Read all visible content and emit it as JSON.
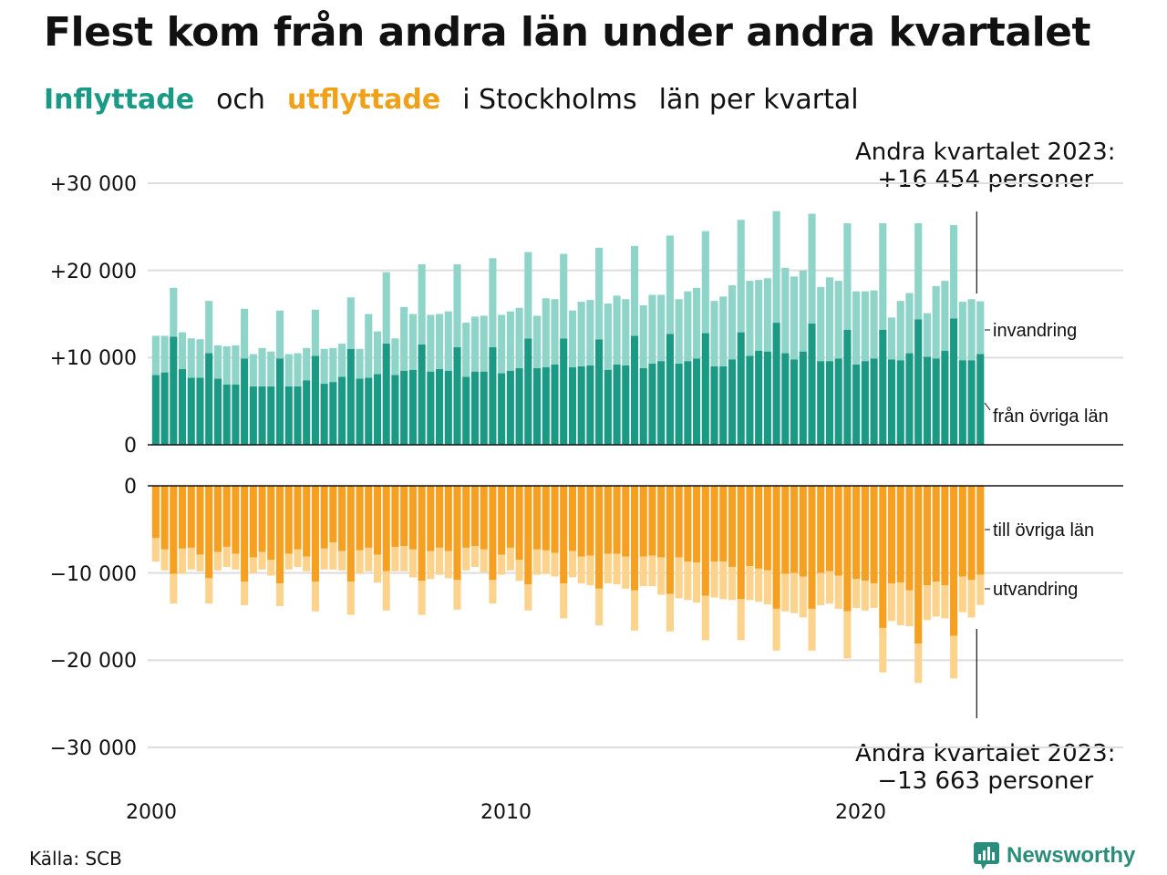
{
  "title": "Flest kom från andra län under andra kvartalet",
  "subtitle": {
    "in_word": "Inflyttade",
    "and_word": "och",
    "out_word": "utflyttade",
    "rest_1": "i Stockholms",
    "rest_2": "län per kvartal"
  },
  "annotation_top": {
    "line1": "Andra kvartalet 2023:",
    "line2": "+16 454 personer"
  },
  "annotation_bottom": {
    "line1": "Andra kvartalet 2023:",
    "line2": "−13 663 personer"
  },
  "source": "Källa: SCB",
  "logo": {
    "text": "Newsworthy",
    "icon": "newsworthy-logo-icon"
  },
  "colors": {
    "in_dark": "#1a9985",
    "in_light": "#8fd4c9",
    "out_dark": "#f5a020",
    "out_light": "#fbd38d",
    "grid": "#dddddd"
  },
  "chart_data": {
    "type": "bar",
    "stacked": true,
    "x_ticks": [
      "2000",
      "2010",
      "2020"
    ],
    "y_ticks_top": [
      "+30 000",
      "+20 000",
      "+10 000",
      "0"
    ],
    "y_ticks_bottom": [
      "0",
      "−10 000",
      "−20 000",
      "−30 000"
    ],
    "ylim_top": [
      0,
      30000
    ],
    "ylim_bottom": [
      -30000,
      0
    ],
    "series_labels": {
      "in_domestic": "från övriga län",
      "in_foreign": "invandring",
      "out_domestic": "till övriga län",
      "out_foreign": "utvandring"
    },
    "quarters": [
      "2000Q1",
      "2000Q2",
      "2000Q3",
      "2000Q4",
      "2001Q1",
      "2001Q2",
      "2001Q3",
      "2001Q4",
      "2002Q1",
      "2002Q2",
      "2002Q3",
      "2002Q4",
      "2003Q1",
      "2003Q2",
      "2003Q3",
      "2003Q4",
      "2004Q1",
      "2004Q2",
      "2004Q3",
      "2004Q4",
      "2005Q1",
      "2005Q2",
      "2005Q3",
      "2005Q4",
      "2006Q1",
      "2006Q2",
      "2006Q3",
      "2006Q4",
      "2007Q1",
      "2007Q2",
      "2007Q3",
      "2007Q4",
      "2008Q1",
      "2008Q2",
      "2008Q3",
      "2008Q4",
      "2009Q1",
      "2009Q2",
      "2009Q3",
      "2009Q4",
      "2010Q1",
      "2010Q2",
      "2010Q3",
      "2010Q4",
      "2011Q1",
      "2011Q2",
      "2011Q3",
      "2011Q4",
      "2012Q1",
      "2012Q2",
      "2012Q3",
      "2012Q4",
      "2013Q1",
      "2013Q2",
      "2013Q3",
      "2013Q4",
      "2014Q1",
      "2014Q2",
      "2014Q3",
      "2014Q4",
      "2015Q1",
      "2015Q2",
      "2015Q3",
      "2015Q4",
      "2016Q1",
      "2016Q2",
      "2016Q3",
      "2016Q4",
      "2017Q1",
      "2017Q2",
      "2017Q3",
      "2017Q4",
      "2018Q1",
      "2018Q2",
      "2018Q3",
      "2018Q4",
      "2019Q1",
      "2019Q2",
      "2019Q3",
      "2019Q4",
      "2020Q1",
      "2020Q2",
      "2020Q3",
      "2020Q4",
      "2021Q1",
      "2021Q2",
      "2021Q3",
      "2021Q4",
      "2022Q1",
      "2022Q2",
      "2022Q3",
      "2022Q4",
      "2023Q1",
      "2023Q2"
    ],
    "in_domestic": [
      8000,
      8300,
      12400,
      8700,
      7700,
      7700,
      10500,
      7600,
      6900,
      6900,
      9900,
      6700,
      6700,
      6700,
      9900,
      6700,
      6700,
      7400,
      10200,
      7000,
      7200,
      7800,
      11000,
      7600,
      7700,
      8100,
      11600,
      8000,
      8500,
      8600,
      11500,
      8400,
      8700,
      8500,
      11200,
      7800,
      8400,
      8400,
      11200,
      8200,
      8500,
      8800,
      12200,
      8800,
      8900,
      9200,
      12200,
      8900,
      9000,
      9100,
      12100,
      8600,
      9200,
      9100,
      12500,
      8800,
      9300,
      9600,
      12700,
      9300,
      9600,
      9900,
      12800,
      9000,
      9000,
      9800,
      12900,
      10200,
      10800,
      10700,
      14000,
      10500,
      9800,
      10700,
      13900,
      9600,
      9600,
      9900,
      13200,
      9200,
      9600,
      9900,
      13200,
      9800,
      9700,
      10500,
      14400,
      10100,
      9900,
      10800,
      14500,
      9700,
      9700,
      10400
    ],
    "in_foreign": [
      4500,
      4200,
      5600,
      4200,
      4500,
      4400,
      6000,
      3800,
      4400,
      4500,
      5700,
      3700,
      4400,
      4000,
      5500,
      3700,
      3800,
      3700,
      5300,
      4000,
      3900,
      3800,
      5900,
      3400,
      7300,
      4900,
      8200,
      4200,
      7300,
      6400,
      9200,
      6500,
      6300,
      6800,
      9500,
      6200,
      6300,
      6400,
      10200,
      6700,
      6800,
      6900,
      9900,
      6000,
      7900,
      7500,
      9700,
      6500,
      7400,
      7500,
      10500,
      7600,
      7900,
      7600,
      10300,
      7200,
      7900,
      7600,
      11300,
      7400,
      8000,
      8100,
      11700,
      7500,
      8000,
      8500,
      12900,
      8600,
      8100,
      8400,
      12800,
      9800,
      9500,
      9300,
      12600,
      8500,
      9600,
      8900,
      12200,
      8400,
      8000,
      7800,
      12200,
      4800,
      6800,
      6900,
      11000,
      5000,
      8300,
      8000,
      10700,
      6700,
      7000,
      6054
    ],
    "out_domestic": [
      -6000,
      -7300,
      -10100,
      -7200,
      -7100,
      -7900,
      -10600,
      -7600,
      -7000,
      -7800,
      -11000,
      -8200,
      -7600,
      -8500,
      -11200,
      -7800,
      -7300,
      -8100,
      -11000,
      -7200,
      -6500,
      -7500,
      -11000,
      -7400,
      -7100,
      -7900,
      -9800,
      -7000,
      -6900,
      -7300,
      -10900,
      -7500,
      -7100,
      -7500,
      -10800,
      -7100,
      -6900,
      -7300,
      -10800,
      -7900,
      -7100,
      -8500,
      -11300,
      -7300,
      -7400,
      -7700,
      -11200,
      -7500,
      -8100,
      -8000,
      -11800,
      -7800,
      -7800,
      -8100,
      -12000,
      -8100,
      -8000,
      -8200,
      -12400,
      -8200,
      -8700,
      -8800,
      -12600,
      -8700,
      -8700,
      -9300,
      -13000,
      -9200,
      -9500,
      -9700,
      -14100,
      -10100,
      -10000,
      -10400,
      -14100,
      -10000,
      -9800,
      -10300,
      -14400,
      -10700,
      -10900,
      -11200,
      -16300,
      -11200,
      -11100,
      -12000,
      -18100,
      -11400,
      -11000,
      -11400,
      -17200,
      -10400,
      -10800,
      -10200
    ],
    "out_foreign": [
      -2700,
      -2400,
      -3400,
      -2900,
      -2500,
      -1900,
      -2900,
      -2100,
      -2300,
      -1800,
      -2700,
      -1800,
      -2000,
      -1800,
      -2600,
      -1800,
      -2000,
      -1700,
      -3400,
      -2400,
      -3100,
      -2200,
      -3800,
      -2700,
      -2700,
      -3200,
      -4500,
      -2800,
      -2900,
      -3200,
      -3900,
      -3200,
      -3100,
      -3100,
      -3400,
      -2600,
      -2400,
      -2600,
      -2700,
      -2300,
      -2600,
      -2400,
      -3000,
      -2900,
      -2700,
      -2700,
      -4000,
      -3000,
      -3100,
      -3400,
      -4200,
      -3400,
      -3500,
      -3700,
      -4600,
      -3400,
      -3500,
      -4300,
      -4300,
      -4700,
      -4400,
      -4600,
      -5100,
      -4100,
      -4300,
      -3800,
      -4700,
      -3900,
      -3800,
      -3900,
      -4800,
      -4300,
      -4600,
      -4700,
      -4800,
      -3700,
      -3700,
      -3800,
      -5400,
      -3300,
      -3400,
      -2800,
      -5100,
      -4300,
      -4900,
      -4100,
      -4500,
      -4000,
      -4000,
      -3800,
      -4900,
      -4100,
      -4300,
      -3463
    ]
  }
}
